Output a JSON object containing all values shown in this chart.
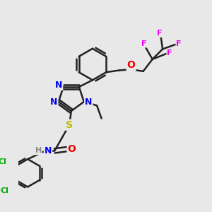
{
  "background_color": "#e8e8e8",
  "bond_color": "#222222",
  "bond_width": 1.8,
  "atom_colors": {
    "N": "#0000ee",
    "O": "#ee0000",
    "S": "#bbbb00",
    "Cl": "#00aa00",
    "F": "#ee00ee",
    "H": "#888888",
    "C": "#222222"
  },
  "font_size": 8,
  "fig_width": 3.0,
  "fig_height": 3.0,
  "dpi": 100
}
